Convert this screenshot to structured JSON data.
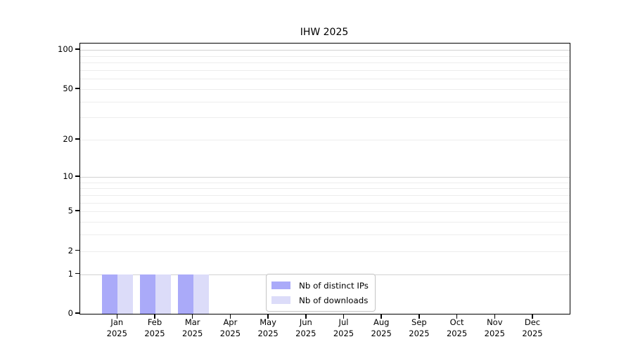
{
  "chart_data": {
    "type": "bar",
    "title": "IHW 2025",
    "categories": [
      "Jan 2025",
      "Feb 2025",
      "Mar 2025",
      "Apr 2025",
      "May 2025",
      "Jun 2025",
      "Jul 2025",
      "Aug 2025",
      "Sep 2025",
      "Oct 2025",
      "Nov 2025",
      "Dec 2025"
    ],
    "series": [
      {
        "name": "Nb of distinct IPs",
        "color": "#aaaaf9",
        "values": [
          1,
          1,
          1,
          0,
          0,
          0,
          0,
          0,
          0,
          0,
          0,
          0
        ]
      },
      {
        "name": "Nb of downloads",
        "color": "#dcdcf9",
        "values": [
          1,
          1,
          1,
          0,
          0,
          0,
          0,
          0,
          0,
          0,
          0,
          0
        ]
      }
    ],
    "xlabel": "",
    "ylabel": "",
    "yaxis": {
      "scale": "log1p",
      "tick_values": [
        0,
        1,
        2,
        5,
        10,
        20,
        50,
        100
      ],
      "major_grid_values": [
        1,
        10,
        100
      ],
      "minor_grid_values": [
        2,
        3,
        4,
        5,
        6,
        7,
        8,
        9,
        20,
        30,
        40,
        50,
        60,
        70,
        80,
        90
      ],
      "range": [
        0,
        110
      ]
    },
    "grid": "horizontal",
    "legend_position": "inside-bottom-center"
  },
  "colors": {
    "background": "#ffffff",
    "axis": "#000000",
    "grid_major": "#d2d2d2",
    "grid_minor": "#ededed",
    "bar_distinct_ips": "#aaaaf9",
    "bar_downloads": "#dcdcf9",
    "legend_border": "#c4c4c4",
    "text": "#000000"
  }
}
